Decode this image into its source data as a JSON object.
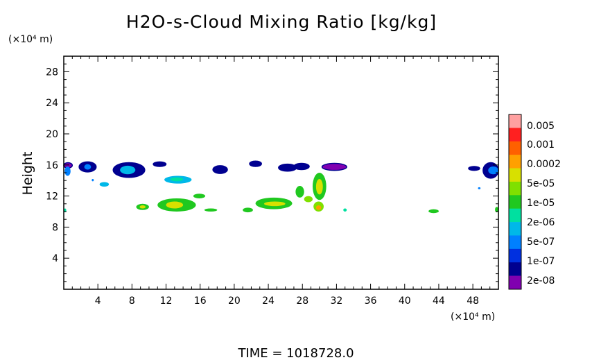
{
  "chart_data": {
    "type": "heatmap",
    "title": "H2O-s-Cloud Mixing Ratio [kg/kg]",
    "ylabel": "Height",
    "y_unit": "(×10⁴ m)",
    "x_unit": "(×10⁴ m)",
    "xlim": [
      0,
      51
    ],
    "ylim": [
      0,
      30
    ],
    "x_ticks": [
      4,
      8,
      12,
      16,
      20,
      24,
      28,
      32,
      36,
      40,
      44,
      48
    ],
    "y_ticks": [
      4,
      8,
      12,
      16,
      20,
      24,
      28
    ],
    "colorbar": {
      "labels": [
        "0.005",
        "0.001",
        "0.0002",
        "5e-05",
        "1e-05",
        "2e-06",
        "5e-07",
        "1e-07",
        "2e-08"
      ],
      "colors": [
        "#ffa0a0",
        "#ff2020",
        "#ff6000",
        "#ffa000",
        "#d8e000",
        "#80e000",
        "#20c820",
        "#00e0a0",
        "#00b8e8",
        "#0080ff",
        "#0030e0",
        "#000090",
        "#8000b0"
      ]
    },
    "footer": "TIME = 1018728.0",
    "cloud_regions": [
      {
        "x": [
          0,
          1
        ],
        "y": [
          15.6,
          16.3
        ],
        "level": 12
      },
      {
        "x": [
          0.1,
          0.8
        ],
        "y": [
          14.6,
          15.8
        ],
        "level": 9
      },
      {
        "x": [
          1.8,
          3.8
        ],
        "y": [
          15.1,
          16.4
        ],
        "level": 11
      },
      {
        "x": [
          2.4,
          3.2
        ],
        "y": [
          15.4,
          16.1
        ],
        "level": 9
      },
      {
        "x": [
          5.8,
          9.5
        ],
        "y": [
          14.4,
          16.3
        ],
        "level": 11
      },
      {
        "x": [
          6.6,
          8.4
        ],
        "y": [
          14.8,
          15.9
        ],
        "level": 8
      },
      {
        "x": [
          10.5,
          12
        ],
        "y": [
          15.8,
          16.4
        ],
        "level": 11
      },
      {
        "x": [
          11.8,
          15
        ],
        "y": [
          13.6,
          14.6
        ],
        "level": 8
      },
      {
        "x": [
          12.5,
          14
        ],
        "y": [
          13.9,
          14.4
        ],
        "level": 7
      },
      {
        "x": [
          4.2,
          5.3
        ],
        "y": [
          13.2,
          13.8
        ],
        "level": 8
      },
      {
        "x": [
          3.3,
          3.5
        ],
        "y": [
          13.9,
          14.2
        ],
        "level": 9
      },
      {
        "x": [
          17.5,
          19.2
        ],
        "y": [
          14.9,
          15.9
        ],
        "level": 11
      },
      {
        "x": [
          21.8,
          23.2
        ],
        "y": [
          15.8,
          16.5
        ],
        "level": 11
      },
      {
        "x": [
          25.2,
          27.3
        ],
        "y": [
          15.2,
          16.1
        ],
        "level": 11
      },
      {
        "x": [
          27,
          28.8
        ],
        "y": [
          15.4,
          16.2
        ],
        "level": 11
      },
      {
        "x": [
          30.3,
          33.2
        ],
        "y": [
          15.3,
          16.2
        ],
        "level": 12
      },
      {
        "x": [
          47.5,
          48.8
        ],
        "y": [
          15.3,
          15.8
        ],
        "level": 11
      },
      {
        "x": [
          49.2,
          51
        ],
        "y": [
          14.3,
          16.3
        ],
        "level": 11
      },
      {
        "x": [
          49.8,
          51
        ],
        "y": [
          14.8,
          15.8
        ],
        "level": 9
      },
      {
        "x": [
          48.6,
          48.9
        ],
        "y": [
          12.9,
          13.1
        ],
        "level": 9
      },
      {
        "x": [
          11,
          15.5
        ],
        "y": [
          10,
          11.7
        ],
        "level": 6
      },
      {
        "x": [
          12,
          14
        ],
        "y": [
          10.4,
          11.3
        ],
        "level": 4
      },
      {
        "x": [
          8.5,
          10
        ],
        "y": [
          10.2,
          11
        ],
        "level": 6
      },
      {
        "x": [
          8.9,
          9.6
        ],
        "y": [
          10.4,
          10.8
        ],
        "level": 4
      },
      {
        "x": [
          15.2,
          16.6
        ],
        "y": [
          11.7,
          12.3
        ],
        "level": 6
      },
      {
        "x": [
          16.5,
          18
        ],
        "y": [
          10,
          10.4
        ],
        "level": 6
      },
      {
        "x": [
          21,
          22.2
        ],
        "y": [
          9.9,
          10.5
        ],
        "level": 6
      },
      {
        "x": [
          22.5,
          26.8
        ],
        "y": [
          10.3,
          11.8
        ],
        "level": 6
      },
      {
        "x": [
          23.5,
          26
        ],
        "y": [
          10.7,
          11.3
        ],
        "level": 4
      },
      {
        "x": [
          27.2,
          28.2
        ],
        "y": [
          11.8,
          13.3
        ],
        "level": 6
      },
      {
        "x": [
          28.2,
          29.2
        ],
        "y": [
          11.2,
          12
        ],
        "level": 5
      },
      {
        "x": [
          29.2,
          30.8
        ],
        "y": [
          11.5,
          15
        ],
        "level": 6
      },
      {
        "x": [
          29.6,
          30.4
        ],
        "y": [
          12.2,
          14.2
        ],
        "level": 4
      },
      {
        "x": [
          29.3,
          30.5
        ],
        "y": [
          10,
          11.3
        ],
        "level": 5
      },
      {
        "x": [
          29.6,
          30.2
        ],
        "y": [
          10.2,
          10.8
        ],
        "level": 3
      },
      {
        "x": [
          32.8,
          33.2
        ],
        "y": [
          10,
          10.4
        ],
        "level": 7
      },
      {
        "x": [
          42.8,
          44
        ],
        "y": [
          9.8,
          10.3
        ],
        "level": 6
      },
      {
        "x": [
          50.6,
          51
        ],
        "y": [
          9.9,
          10.6
        ],
        "level": 6
      },
      {
        "x": [
          0,
          0.3
        ],
        "y": [
          9.9,
          10.4
        ],
        "level": 7
      }
    ]
  }
}
